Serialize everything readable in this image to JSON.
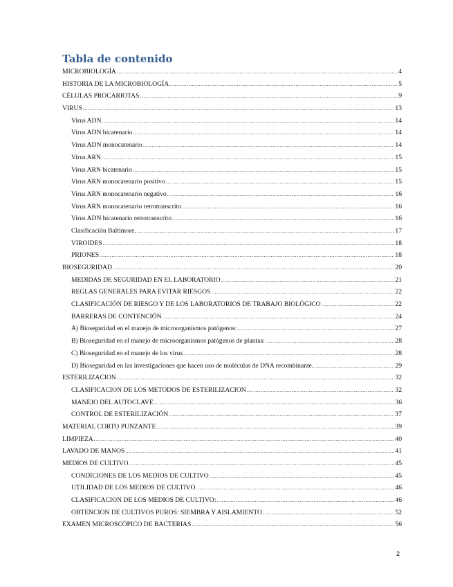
{
  "title": "Tabla de contenido",
  "entries": [
    {
      "text": "MICROBIOLOGÍA",
      "page": "4",
      "level": 1
    },
    {
      "text": "HISTORIA DE LA MICROBIOLOGÍA",
      "page": "5",
      "level": 1
    },
    {
      "text": "CÉLULAS PROCARIOTAS",
      "page": "9",
      "level": 1
    },
    {
      "text": "VIRUS",
      "page": "13",
      "level": 1
    },
    {
      "text": "Virus ADN",
      "page": "14",
      "level": 2
    },
    {
      "text": "Virus ADN bicatenario",
      "page": "14",
      "level": 2
    },
    {
      "text": "Virus ADN monocatenario",
      "page": "14",
      "level": 2
    },
    {
      "text": "Virus ARN",
      "page": "15",
      "level": 2
    },
    {
      "text": "Virus ARN bicatenario",
      "page": "15",
      "level": 2
    },
    {
      "text": "Virus ARN monocatenario positivo",
      "page": "15",
      "level": 2
    },
    {
      "text": "Virus ARN monocatenario negativo",
      "page": "16",
      "level": 2
    },
    {
      "text": "Virus ARN monocatenario retrotranscrito.",
      "page": "16",
      "level": 2
    },
    {
      "text": "Virus ADN bicatenario retrotranscrito",
      "page": "16",
      "level": 2
    },
    {
      "text": "Clasificación Baltimore.",
      "page": "17",
      "level": 2
    },
    {
      "text": "VIROIDES",
      "page": "18",
      "level": 2
    },
    {
      "text": "PRIONES",
      "page": "18",
      "level": 2
    },
    {
      "text": "BIOSEGURIDAD",
      "page": "20",
      "level": 1
    },
    {
      "text": "MEDIDAS DE SEGURIDAD EN EL LABORATORIO",
      "page": "21",
      "level": 2
    },
    {
      "text": "REGLAS GENERALES PARA EVITAR RIESGOS",
      "page": "22",
      "level": 2
    },
    {
      "text": "CLASIFICACIÓN DE RIESGO Y DE LOS LABORATORIOS DE TRABAJO BIOLÓGICO",
      "page": "22",
      "level": 2
    },
    {
      "text": "BARRERAS DE CONTENCIÓN",
      "page": "24",
      "level": 2
    },
    {
      "text": "A) Bioseguridad en el manejo de microorganismos patógenos:",
      "page": "27",
      "level": 2
    },
    {
      "text": "B) Bioseguridad en el manejo de microorganismos patógenos de plantas:",
      "page": "28",
      "level": 2
    },
    {
      "text": "C) Bioseguridad en el manejo de los virus",
      "page": "28",
      "level": 2
    },
    {
      "text": "D) Bioseguridad en las investigaciones que hacen uso de moléculas de DNA recombinante.",
      "page": "29",
      "level": 2
    },
    {
      "text": "ESTERILIZACION",
      "page": "32",
      "level": 1
    },
    {
      "text": "CLASIFICACION  DE LOS METODOS DE ESTERILIZACION",
      "page": "32",
      "level": 2
    },
    {
      "text": "MANEJO DEL AUTOCLAVE",
      "page": "36",
      "level": 2
    },
    {
      "text": "CONTROL DE ESTERILIZACIÓN",
      "page": "37",
      "level": 2
    },
    {
      "text": "MATERIAL CORTO PUNZANTE",
      "page": "39",
      "level": 1
    },
    {
      "text": "LIMPIEZA",
      "page": "40",
      "level": 1
    },
    {
      "text": "LAVADO DE MANOS",
      "page": "41",
      "level": 1
    },
    {
      "text": "MEDIOS DE CULTIVO",
      "page": "45",
      "level": 1
    },
    {
      "text": "CONDICIONES DE LOS MEDIOS DE CULTIVO",
      "page": "45",
      "level": 2
    },
    {
      "text": "UTILIDAD DE LOS MEDIOS DE CULTIVO",
      "page": "46",
      "level": 2
    },
    {
      "text": "CLASIFICACION DE LOS MEDIOS DE CULTIVO:",
      "page": "46",
      "level": 2
    },
    {
      "text": "OBTENCION DE CULTIVOS PUROS: SIEMBRA Y AISLAMIENTO",
      "page": "52",
      "level": 2
    },
    {
      "text": "EXAMEN MICROSCÓPICO DE BACTERIAS",
      "page": "56",
      "level": 1
    }
  ],
  "page_number": "2"
}
